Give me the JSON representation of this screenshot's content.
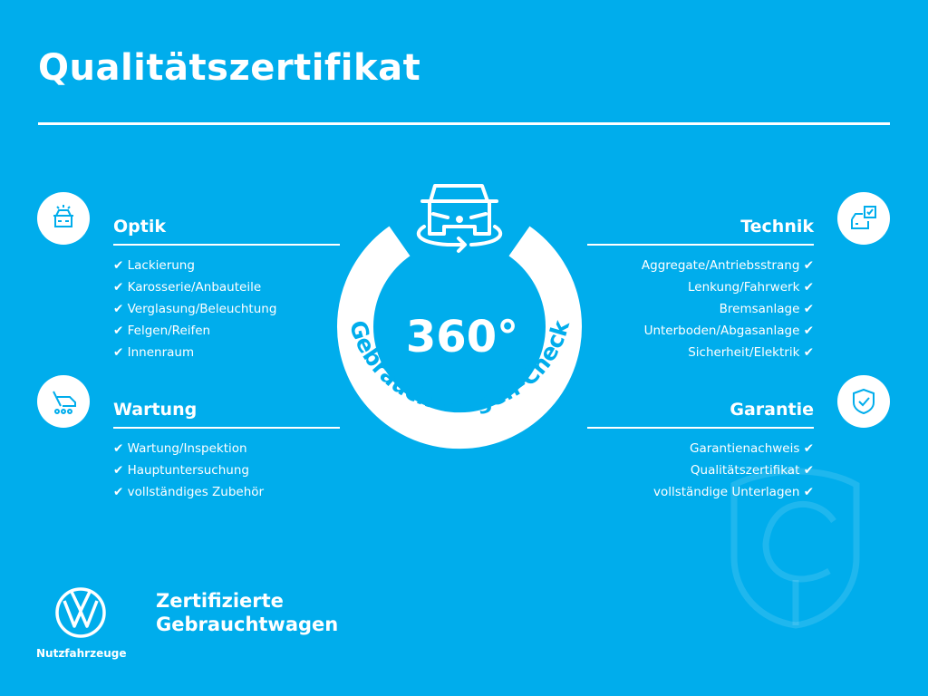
{
  "title": "Qualitätszertifikat",
  "center": {
    "number": "360°",
    "arc_text": "Gebrauchtwagen-Check",
    "icon": "car-rotate-icon"
  },
  "check_mark": "✔",
  "sections": {
    "optik": {
      "title": "Optik",
      "icon": "car-lights-icon",
      "items": [
        "Lackierung",
        "Karosserie/Anbauteile",
        "Verglasung/Beleuchtung",
        "Felgen/Reifen",
        "Innenraum"
      ]
    },
    "wartung": {
      "title": "Wartung",
      "icon": "wrench-van-icon",
      "items": [
        "Wartung/Inspektion",
        "Hauptuntersuchung",
        "vollständiges Zubehör"
      ]
    },
    "technik": {
      "title": "Technik",
      "icon": "car-checklist-icon",
      "items": [
        "Aggregate/Antriebsstrang",
        "Lenkung/Fahrwerk",
        "Bremsanlage",
        "Unterboden/Abgasanlage",
        "Sicherheit/Elektrik"
      ]
    },
    "garantie": {
      "title": "Garantie",
      "icon": "shield-check-icon",
      "items": [
        "Garantienachweis",
        "Qualitätszertifikat",
        "vollständige Unterlagen"
      ]
    }
  },
  "brand": {
    "line1": "Zertifizierte",
    "line2": "Gebrauchtwagen",
    "sub": "Nutzfahrzeuge",
    "logo": "VW"
  },
  "colors": {
    "background": "#00adec",
    "foreground": "#ffffff"
  }
}
